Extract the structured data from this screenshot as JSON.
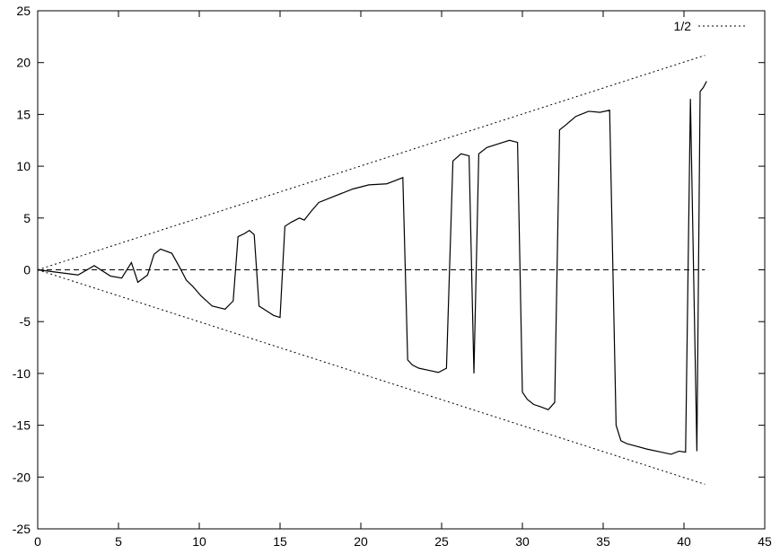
{
  "chart_data": {
    "type": "line",
    "title": "",
    "xlabel": "",
    "ylabel": "",
    "xlim": [
      0,
      45
    ],
    "ylim": [
      -25,
      25
    ],
    "x_ticks": [
      0,
      5,
      10,
      15,
      20,
      25,
      30,
      35,
      40,
      45
    ],
    "y_ticks": [
      -25,
      -20,
      -15,
      -10,
      -5,
      0,
      5,
      10,
      15,
      20,
      25
    ],
    "grid": false,
    "legend_position": "top-right",
    "legend": [
      "1/2"
    ],
    "series": [
      {
        "name": "1/2",
        "style": "dotted",
        "color": "#000000",
        "x": [
          0,
          41.3
        ],
        "y": [
          0,
          20.7
        ]
      },
      {
        "style": "dotted",
        "color": "#000000",
        "x": [
          0,
          41.3
        ],
        "y": [
          0,
          -20.7
        ]
      },
      {
        "style": "dashed",
        "color": "#000000",
        "x": [
          0,
          41.3
        ],
        "y": [
          0,
          0
        ]
      },
      {
        "style": "solid",
        "color": "#000000",
        "x": [
          0,
          2.5,
          3.5,
          4.5,
          5.2,
          5.8,
          6.2,
          6.8,
          7.2,
          7.6,
          8.3,
          8.8,
          9.2,
          9.6,
          10.1,
          10.8,
          11.6,
          12.1,
          12.4,
          12.8,
          13.1,
          13.4,
          13.7,
          14.2,
          14.6,
          15.0,
          15.3,
          15.7,
          16.2,
          16.5,
          16.9,
          17.4,
          18.2,
          19.5,
          20.5,
          21.6,
          22.1,
          22.6,
          22.9,
          23.2,
          23.6,
          24.2,
          24.8,
          25.3,
          25.7,
          26.2,
          26.7,
          27.0,
          27.3,
          27.8,
          28.6,
          29.2,
          29.7,
          30.0,
          30.3,
          30.7,
          31.1,
          31.6,
          32.0,
          32.3,
          32.7,
          33.3,
          34.1,
          34.8,
          35.4,
          35.8,
          36.1,
          36.5,
          37.0,
          37.7,
          38.6,
          39.2,
          39.7,
          40.1,
          40.4,
          40.8,
          41.0,
          41.2,
          41.4
        ],
        "y": [
          0,
          -0.5,
          0.4,
          -0.6,
          -0.8,
          0.7,
          -1.2,
          -0.5,
          1.5,
          2.0,
          1.6,
          0.2,
          -1.0,
          -1.6,
          -2.5,
          -3.5,
          -3.8,
          -3.0,
          3.2,
          3.5,
          3.8,
          3.4,
          -3.5,
          -4.0,
          -4.4,
          -4.6,
          4.2,
          4.6,
          5.0,
          4.8,
          5.6,
          6.5,
          7.0,
          7.8,
          8.2,
          8.3,
          8.6,
          8.9,
          -8.7,
          -9.2,
          -9.5,
          -9.7,
          -9.9,
          -9.5,
          10.5,
          11.2,
          11.0,
          -10.0,
          11.2,
          11.8,
          12.2,
          12.5,
          12.3,
          -11.8,
          -12.5,
          -13.0,
          -13.2,
          -13.5,
          -12.8,
          13.5,
          14.0,
          14.8,
          15.3,
          15.2,
          15.4,
          -15.0,
          -16.5,
          -16.8,
          -17.0,
          -17.3,
          -17.6,
          -17.8,
          -17.5,
          -17.6,
          16.5,
          -17.5,
          17.2,
          17.6,
          18.2
        ]
      }
    ]
  }
}
